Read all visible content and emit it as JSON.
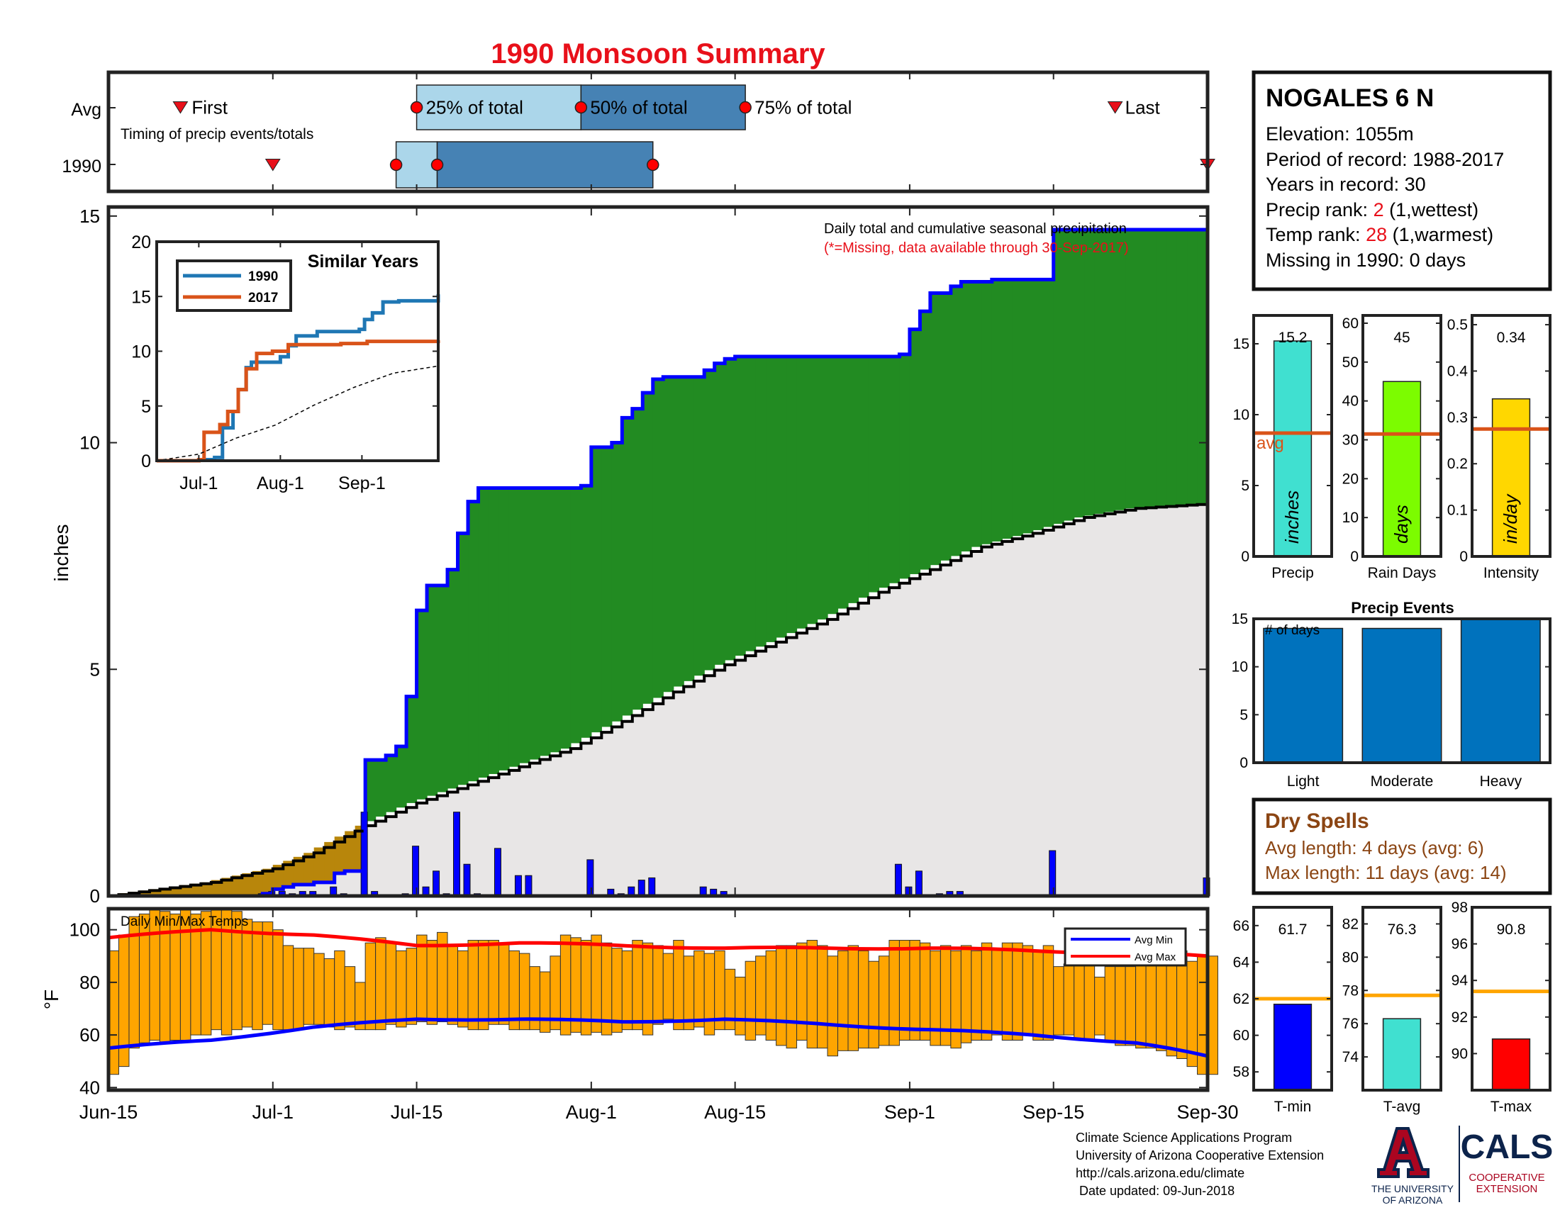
{
  "title": "1990 Monsoon Summary",
  "colors": {
    "title": "#e8101a",
    "green": "#228b22",
    "blue": "#0000ff",
    "gold": "#b8860b",
    "gray_fill": "#e8e6e6",
    "light_blue": "#abd6ea",
    "mid_blue": "#4682b4",
    "orange_bar": "#ffa500",
    "rank_red": "#e8101a",
    "dry_brown": "#8b4513",
    "ua_navy": "#0c234b",
    "ua_red": "#ab0520"
  },
  "timing": {
    "row_avg_label": "Avg",
    "row_year_label": "1990",
    "caption": "Timing of precip events/totals",
    "first_label": "First",
    "last_label": "Last",
    "pct25_label": "25% of total",
    "pct50_label": "50% of total",
    "pct75_label": "75% of total",
    "avg": {
      "first": 7,
      "p25": 30,
      "p50": 46,
      "p75": 62,
      "last": 98
    },
    "year": {
      "first": 16,
      "p25": 28,
      "p50": 32,
      "p75": 53,
      "last": 107
    }
  },
  "station": {
    "name": "NOGALES 6 N",
    "elevation": "Elevation: 1055m",
    "period": "Period of record: 1988-2017",
    "years": "Years in record: 30",
    "precip_rank_prefix": "Precip rank: ",
    "precip_rank_value": "2",
    "precip_rank_suffix": " (1,wettest)",
    "temp_rank_prefix": "Temp rank: ",
    "temp_rank_value": "28",
    "temp_rank_suffix": " (1,warmest)",
    "missing": "Missing in 1990: 0 days"
  },
  "chart_data": [
    {
      "id": "cumulative",
      "type": "area",
      "annotation1": "Daily total and cumulative seasonal precipitation",
      "annotation2": "(*=Missing, data available through 30-Sep-2017)",
      "ylabel": "inches",
      "ylim": [
        0,
        15.2
      ],
      "yticks": [
        0,
        5,
        10,
        15
      ],
      "x_tick_labels": [
        "Jun-15",
        "Jul-1",
        "Jul-15",
        "Aug-1",
        "Aug-15",
        "Sep-1",
        "Sep-15",
        "Sep-30"
      ],
      "x_tick_days": [
        0,
        16,
        30,
        47,
        61,
        78,
        92,
        107
      ],
      "cumulative_1990_steps": [
        [
          0,
          0
        ],
        [
          15,
          0.05
        ],
        [
          16,
          0.15
        ],
        [
          17,
          0.2
        ],
        [
          18,
          0.25
        ],
        [
          20,
          0.3
        ],
        [
          22,
          0.5
        ],
        [
          23,
          0.55
        ],
        [
          25,
          3.0
        ],
        [
          27,
          3.1
        ],
        [
          28,
          3.3
        ],
        [
          29,
          4.4
        ],
        [
          30,
          6.3
        ],
        [
          31,
          6.85
        ],
        [
          33,
          7.2
        ],
        [
          34,
          8.0
        ],
        [
          35,
          8.7
        ],
        [
          36,
          9.0
        ],
        [
          46,
          9.05
        ],
        [
          47,
          9.9
        ],
        [
          49,
          10.0
        ],
        [
          50,
          10.55
        ],
        [
          51,
          10.75
        ],
        [
          52,
          11.1
        ],
        [
          53,
          11.4
        ],
        [
          54,
          11.45
        ],
        [
          58,
          11.6
        ],
        [
          59,
          11.75
        ],
        [
          60,
          11.85
        ],
        [
          61,
          11.9
        ],
        [
          77,
          11.95
        ],
        [
          78,
          12.5
        ],
        [
          79,
          12.9
        ],
        [
          80,
          13.3
        ],
        [
          82,
          13.45
        ],
        [
          83,
          13.55
        ],
        [
          86,
          13.6
        ],
        [
          92,
          13.65
        ],
        [
          92,
          14.7
        ],
        [
          107,
          15.2
        ]
      ],
      "daily_precip": [
        [
          15,
          0.05
        ],
        [
          16,
          0.1
        ],
        [
          17,
          0.1
        ],
        [
          18,
          0.05
        ],
        [
          19,
          0.1
        ],
        [
          20,
          0.1
        ],
        [
          22,
          0.2
        ],
        [
          23,
          0.05
        ],
        [
          25,
          1.85
        ],
        [
          26,
          0.1
        ],
        [
          29,
          0.05
        ],
        [
          30,
          1.1
        ],
        [
          31,
          0.2
        ],
        [
          32,
          0.55
        ],
        [
          33,
          0.05
        ],
        [
          34,
          1.85
        ],
        [
          35,
          0.7
        ],
        [
          36,
          0.05
        ],
        [
          38,
          1.05
        ],
        [
          40,
          0.45
        ],
        [
          41,
          0.45
        ],
        [
          47,
          0.8
        ],
        [
          49,
          0.15
        ],
        [
          50,
          0.05
        ],
        [
          51,
          0.2
        ],
        [
          52,
          0.35
        ],
        [
          53,
          0.4
        ],
        [
          58,
          0.2
        ],
        [
          59,
          0.15
        ],
        [
          60,
          0.1
        ],
        [
          77,
          0.7
        ],
        [
          78,
          0.2
        ],
        [
          79,
          0.55
        ],
        [
          81,
          0.05
        ],
        [
          82,
          0.1
        ],
        [
          83,
          0.1
        ],
        [
          92,
          1.0
        ],
        [
          107,
          0.4
        ]
      ],
      "avg_cumulative": [
        [
          0,
          0
        ],
        [
          10,
          0.3
        ],
        [
          16,
          0.6
        ],
        [
          20,
          0.95
        ],
        [
          25,
          1.55
        ],
        [
          30,
          2.05
        ],
        [
          35,
          2.45
        ],
        [
          40,
          2.85
        ],
        [
          45,
          3.25
        ],
        [
          50,
          3.85
        ],
        [
          55,
          4.5
        ],
        [
          60,
          5.1
        ],
        [
          65,
          5.6
        ],
        [
          70,
          6.1
        ],
        [
          75,
          6.7
        ],
        [
          80,
          7.2
        ],
        [
          85,
          7.7
        ],
        [
          90,
          8.0
        ],
        [
          95,
          8.35
        ],
        [
          100,
          8.55
        ],
        [
          107,
          8.65
        ]
      ]
    },
    {
      "id": "similar_years",
      "type": "line",
      "title": "Similar Years",
      "ylim": [
        0,
        20
      ],
      "yticks": [
        0,
        5,
        10,
        15,
        20
      ],
      "x_tick_labels": [
        "Jul-1",
        "Aug-1",
        "Sep-1"
      ],
      "x_tick_days": [
        16,
        47,
        78
      ],
      "series": [
        {
          "name": "1990",
          "color": "#1f77b4",
          "points": [
            [
              0,
              0
            ],
            [
              16,
              0.1
            ],
            [
              22,
              0.3
            ],
            [
              25,
              3.0
            ],
            [
              29,
              4.5
            ],
            [
              31,
              6.5
            ],
            [
              34,
              8.5
            ],
            [
              36,
              9.0
            ],
            [
              47,
              9.5
            ],
            [
              50,
              10.5
            ],
            [
              53,
              11.4
            ],
            [
              61,
              11.8
            ],
            [
              77,
              12.0
            ],
            [
              79,
              12.9
            ],
            [
              82,
              13.5
            ],
            [
              86,
              14.5
            ],
            [
              92,
              14.6
            ],
            [
              107,
              15.2
            ]
          ]
        },
        {
          "name": "2017",
          "color": "#d95319",
          "points": [
            [
              0,
              0
            ],
            [
              16,
              0.1
            ],
            [
              18,
              2.6
            ],
            [
              24,
              3.3
            ],
            [
              27,
              4.5
            ],
            [
              31,
              6.5
            ],
            [
              34,
              8.4
            ],
            [
              38,
              9.8
            ],
            [
              44,
              10.0
            ],
            [
              50,
              10.6
            ],
            [
              70,
              10.7
            ],
            [
              80,
              10.9
            ],
            [
              107,
              11.0
            ]
          ]
        },
        {
          "name": "average",
          "color": "#000000",
          "dashed": true,
          "points": [
            [
              0,
              0
            ],
            [
              16,
              0.6
            ],
            [
              30,
              2.05
            ],
            [
              45,
              3.25
            ],
            [
              60,
              5.1
            ],
            [
              75,
              6.7
            ],
            [
              90,
              8.0
            ],
            [
              107,
              8.65
            ]
          ]
        }
      ]
    },
    {
      "id": "temps",
      "type": "bar",
      "annotation": "Daily Min/Max Temps",
      "ylabel": "°F",
      "ylim": [
        39,
        108
      ],
      "yticks": [
        40,
        60,
        80,
        100
      ],
      "legend": [
        "Avg Min",
        "Avg Max"
      ],
      "legend_position": "top-right",
      "avg_min": [
        [
          0,
          55
        ],
        [
          10,
          58
        ],
        [
          20,
          63
        ],
        [
          30,
          66
        ],
        [
          40,
          66
        ],
        [
          50,
          65
        ],
        [
          60,
          66
        ],
        [
          70,
          64
        ],
        [
          80,
          62
        ],
        [
          90,
          60
        ],
        [
          100,
          57
        ],
        [
          107,
          52
        ]
      ],
      "avg_max": [
        [
          0,
          97
        ],
        [
          10,
          100
        ],
        [
          20,
          98
        ],
        [
          30,
          94
        ],
        [
          40,
          95
        ],
        [
          50,
          94
        ],
        [
          60,
          93
        ],
        [
          70,
          93
        ],
        [
          80,
          93
        ],
        [
          90,
          92
        ],
        [
          100,
          91
        ],
        [
          107,
          90
        ]
      ],
      "tmax": [
        92,
        98,
        105,
        106,
        108,
        107,
        106,
        108,
        106,
        107,
        108,
        108,
        107,
        104,
        103,
        103,
        100,
        94,
        93,
        93,
        91,
        89,
        92,
        86,
        80,
        95,
        97,
        95,
        92,
        93,
        98,
        96,
        99,
        94,
        92,
        96,
        96,
        96,
        95,
        92,
        91,
        86,
        84,
        90,
        98,
        97,
        96,
        98,
        95,
        93,
        92,
        96,
        95,
        94,
        91,
        96,
        90,
        92,
        91,
        92,
        85,
        82,
        88,
        90,
        92,
        94,
        94,
        95,
        96,
        94,
        90,
        92,
        94,
        92,
        88,
        90,
        96,
        96,
        96,
        95,
        92,
        94,
        92,
        94,
        92,
        95,
        93,
        95,
        95,
        94,
        92,
        94,
        86,
        87,
        88,
        88,
        82,
        86,
        86,
        86,
        90,
        90,
        92,
        90,
        92,
        88,
        90,
        90
      ],
      "tmin": [
        45,
        48,
        55,
        57,
        58,
        57,
        58,
        58,
        60,
        60,
        62,
        60,
        62,
        63,
        62,
        64,
        62,
        62,
        62,
        64,
        64,
        63,
        62,
        63,
        62,
        62,
        62,
        64,
        63,
        64,
        65,
        64,
        65,
        64,
        63,
        62,
        62,
        64,
        64,
        62,
        62,
        62,
        61,
        62,
        60,
        61,
        60,
        61,
        60,
        61,
        62,
        62,
        60,
        64,
        66,
        62,
        62,
        63,
        60,
        62,
        62,
        60,
        58,
        60,
        58,
        56,
        55,
        58,
        55,
        55,
        52,
        54,
        54,
        55,
        55,
        56,
        56,
        58,
        58,
        58,
        56,
        56,
        55,
        57,
        58,
        58,
        60,
        58,
        58,
        60,
        58,
        58,
        60,
        60,
        58,
        58,
        60,
        58,
        56,
        56,
        55,
        55,
        54,
        52,
        51,
        48,
        45,
        45
      ]
    },
    {
      "id": "precip_bar",
      "type": "bar",
      "xlabel": "Precip",
      "value": 15.2,
      "value_label": "15.2",
      "unit_label": "inches",
      "avg": 8.7,
      "avg_label": "avg",
      "ylim": [
        0,
        17
      ],
      "yticks": [
        0,
        5,
        10,
        15
      ],
      "color": "#40e0d0"
    },
    {
      "id": "raindays_bar",
      "type": "bar",
      "xlabel": "Rain Days",
      "value": 45,
      "value_label": "45",
      "unit_label": "days",
      "avg": 31.5,
      "ylim": [
        0,
        62
      ],
      "yticks": [
        0,
        10,
        20,
        30,
        40,
        50,
        60
      ],
      "color": "#7cfc00"
    },
    {
      "id": "intensity_bar",
      "type": "bar",
      "xlabel": "Intensity",
      "value": 0.34,
      "value_label": "0.34",
      "unit_label": "in/day",
      "avg": 0.275,
      "ylim": [
        0,
        0.52
      ],
      "yticks": [
        0,
        0.1,
        0.2,
        0.3,
        0.4,
        0.5
      ],
      "color": "#ffd700"
    },
    {
      "id": "precip_events",
      "type": "bar",
      "title": "Precip Events",
      "ylabel_inside": "# of days",
      "categories": [
        "Light",
        "Moderate",
        "Heavy"
      ],
      "values": [
        14,
        14,
        15
      ],
      "ylim": [
        0,
        15
      ],
      "yticks": [
        0,
        5,
        10,
        15
      ],
      "color": "#0072bd"
    },
    {
      "id": "tmin_bar",
      "type": "bar",
      "xlabel": "T-min",
      "value": 61.7,
      "value_label": "61.7",
      "avg": 62,
      "ylim": [
        57,
        67
      ],
      "yticks": [
        58,
        60,
        62,
        64,
        66
      ],
      "color": "#0000ff"
    },
    {
      "id": "tavg_bar",
      "type": "bar",
      "xlabel": "T-avg",
      "value": 76.3,
      "value_label": "76.3",
      "avg": 77.7,
      "ylim": [
        72,
        83
      ],
      "yticks": [
        74,
        76,
        78,
        80,
        82
      ],
      "color": "#40e0d0"
    },
    {
      "id": "tmax_bar",
      "type": "bar",
      "xlabel": "T-max",
      "value": 90.8,
      "value_label": "90.8",
      "avg": 93.4,
      "ylim": [
        88,
        98
      ],
      "yticks": [
        90,
        92,
        94,
        96,
        98
      ],
      "color": "#ff0000"
    }
  ],
  "dry_spells": {
    "title": "Dry Spells",
    "avg_length": "Avg length: 4 days (avg: 6)",
    "max_length": "Max length: 11 days (avg: 14)"
  },
  "footer": {
    "line1": "Climate Science Applications Program",
    "line2": "University of Arizona Cooperative Extension",
    "line3": "http://cals.arizona.edu/climate",
    "line4": " Date updated: 09-Jun-2018"
  },
  "logos": {
    "ua_line1": "THE UNIVERSITY",
    "ua_line2": "OF ARIZONA",
    "cals": "CALS",
    "coop1": "COOPERATIVE",
    "coop2": "EXTENSION"
  }
}
